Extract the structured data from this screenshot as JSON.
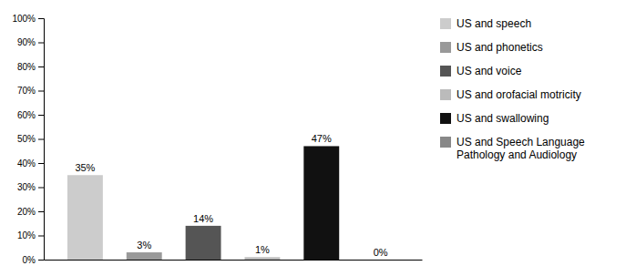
{
  "chart_data": {
    "type": "bar",
    "categories": [
      "US and speech",
      "US and phonetics",
      "US and voice",
      "US and orofacial motricity",
      "US and swallowing",
      "US and Speech Language\nPathology and Audiology"
    ],
    "values": [
      35,
      3,
      14,
      1,
      47,
      0
    ],
    "value_labels": [
      "35%",
      "3%",
      "14%",
      "1%",
      "47%",
      "0%"
    ],
    "colors": [
      "#cccccc",
      "#999999",
      "#555555",
      "#bbbbbb",
      "#111111",
      "#888888"
    ],
    "ylim": [
      0,
      100
    ],
    "yticks": [
      {
        "value": 0,
        "label": "0%"
      },
      {
        "value": 10,
        "label": "10%"
      },
      {
        "value": 20,
        "label": "20%"
      },
      {
        "value": 30,
        "label": "30%"
      },
      {
        "value": 40,
        "label": "40%"
      },
      {
        "value": 50,
        "label": "50%"
      },
      {
        "value": 60,
        "label": "60%"
      },
      {
        "value": 70,
        "label": "70%"
      },
      {
        "value": 80,
        "label": "80%"
      },
      {
        "value": 90,
        "label": "90%"
      },
      {
        "value": 100,
        "label": "100%"
      }
    ],
    "grid": false,
    "legend": "right",
    "data_labels": true,
    "tick_labels": "y"
  }
}
